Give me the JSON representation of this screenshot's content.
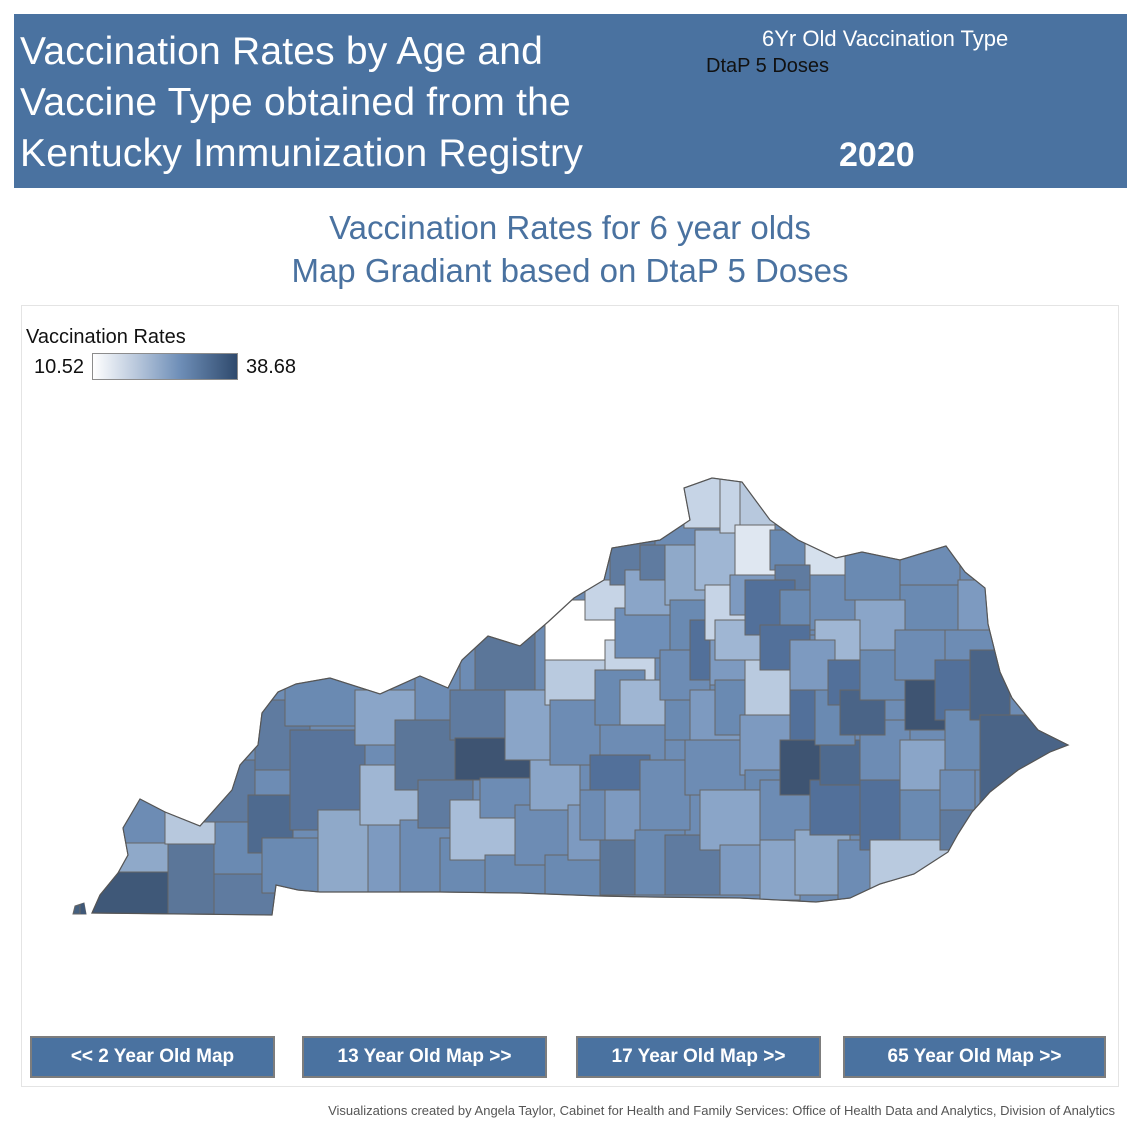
{
  "header": {
    "title_lines": [
      "Vaccination Rates by Age and",
      "Vaccine Type obtained from the",
      "Kentucky Immunization Registry"
    ],
    "vaccination_type_label": "6Yr Old Vaccination Type",
    "vaccination_type_value": "DtaP 5 Doses",
    "year": "2020"
  },
  "subtitle": {
    "line1": "Vaccination Rates for 6 year olds",
    "line2": "Map Gradiant based on DtaP 5 Doses"
  },
  "legend": {
    "title": "Vaccination Rates",
    "min": "10.52",
    "max": "38.68",
    "color_low": "#ffffff",
    "color_high": "#2f4a6d"
  },
  "nav": {
    "btn_2yr": "<< 2 Year Old Map",
    "btn_13yr": "13 Year Old Map >>",
    "btn_17yr": "17 Year Old Map  >>",
    "btn_65yr": "65 Year Old Map >>"
  },
  "footer": {
    "credit": "Visualizations created by Angela Taylor, Cabinet for Health and Family Services: Office of Health Data and Analytics, Division of Analytics"
  },
  "colors": {
    "brand_blue": "#4a72a0",
    "county_border": "#666666"
  }
}
